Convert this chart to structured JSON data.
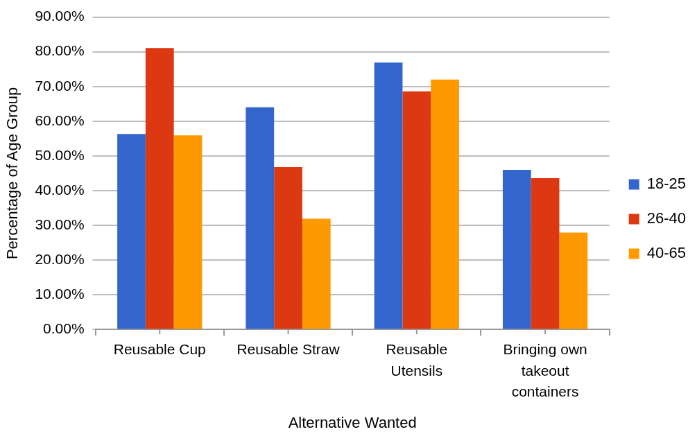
{
  "chart_data": {
    "type": "bar",
    "xlabel": "Alternative Wanted",
    "ylabel": "Percentage of Age Group",
    "categories": [
      "Reusable Cup",
      "Reusable Straw",
      "Reusable Utensils",
      "Bringing own takeout containers"
    ],
    "series": [
      {
        "name": "18-25",
        "color": "#3366cc",
        "values": [
          56.3,
          64.0,
          76.9,
          46.0
        ]
      },
      {
        "name": "26-40",
        "color": "#dc3912",
        "values": [
          81.1,
          46.8,
          68.6,
          43.6
        ]
      },
      {
        "name": "40-65",
        "color": "#ff9900",
        "values": [
          55.9,
          31.9,
          72.0,
          27.9
        ]
      }
    ],
    "ylim": [
      0,
      90
    ],
    "yticks": [
      {
        "value": 0,
        "label": "0.00%"
      },
      {
        "value": 10,
        "label": "10.00%"
      },
      {
        "value": 20,
        "label": "20.00%"
      },
      {
        "value": 30,
        "label": "30.00%"
      },
      {
        "value": 40,
        "label": "40.00%"
      },
      {
        "value": 50,
        "label": "50.00%"
      },
      {
        "value": 60,
        "label": "60.00%"
      },
      {
        "value": 70,
        "label": "70.00%"
      },
      {
        "value": 80,
        "label": "80.00%"
      },
      {
        "value": 90,
        "label": "90.00%"
      }
    ],
    "grid": "y",
    "legend": "right"
  }
}
